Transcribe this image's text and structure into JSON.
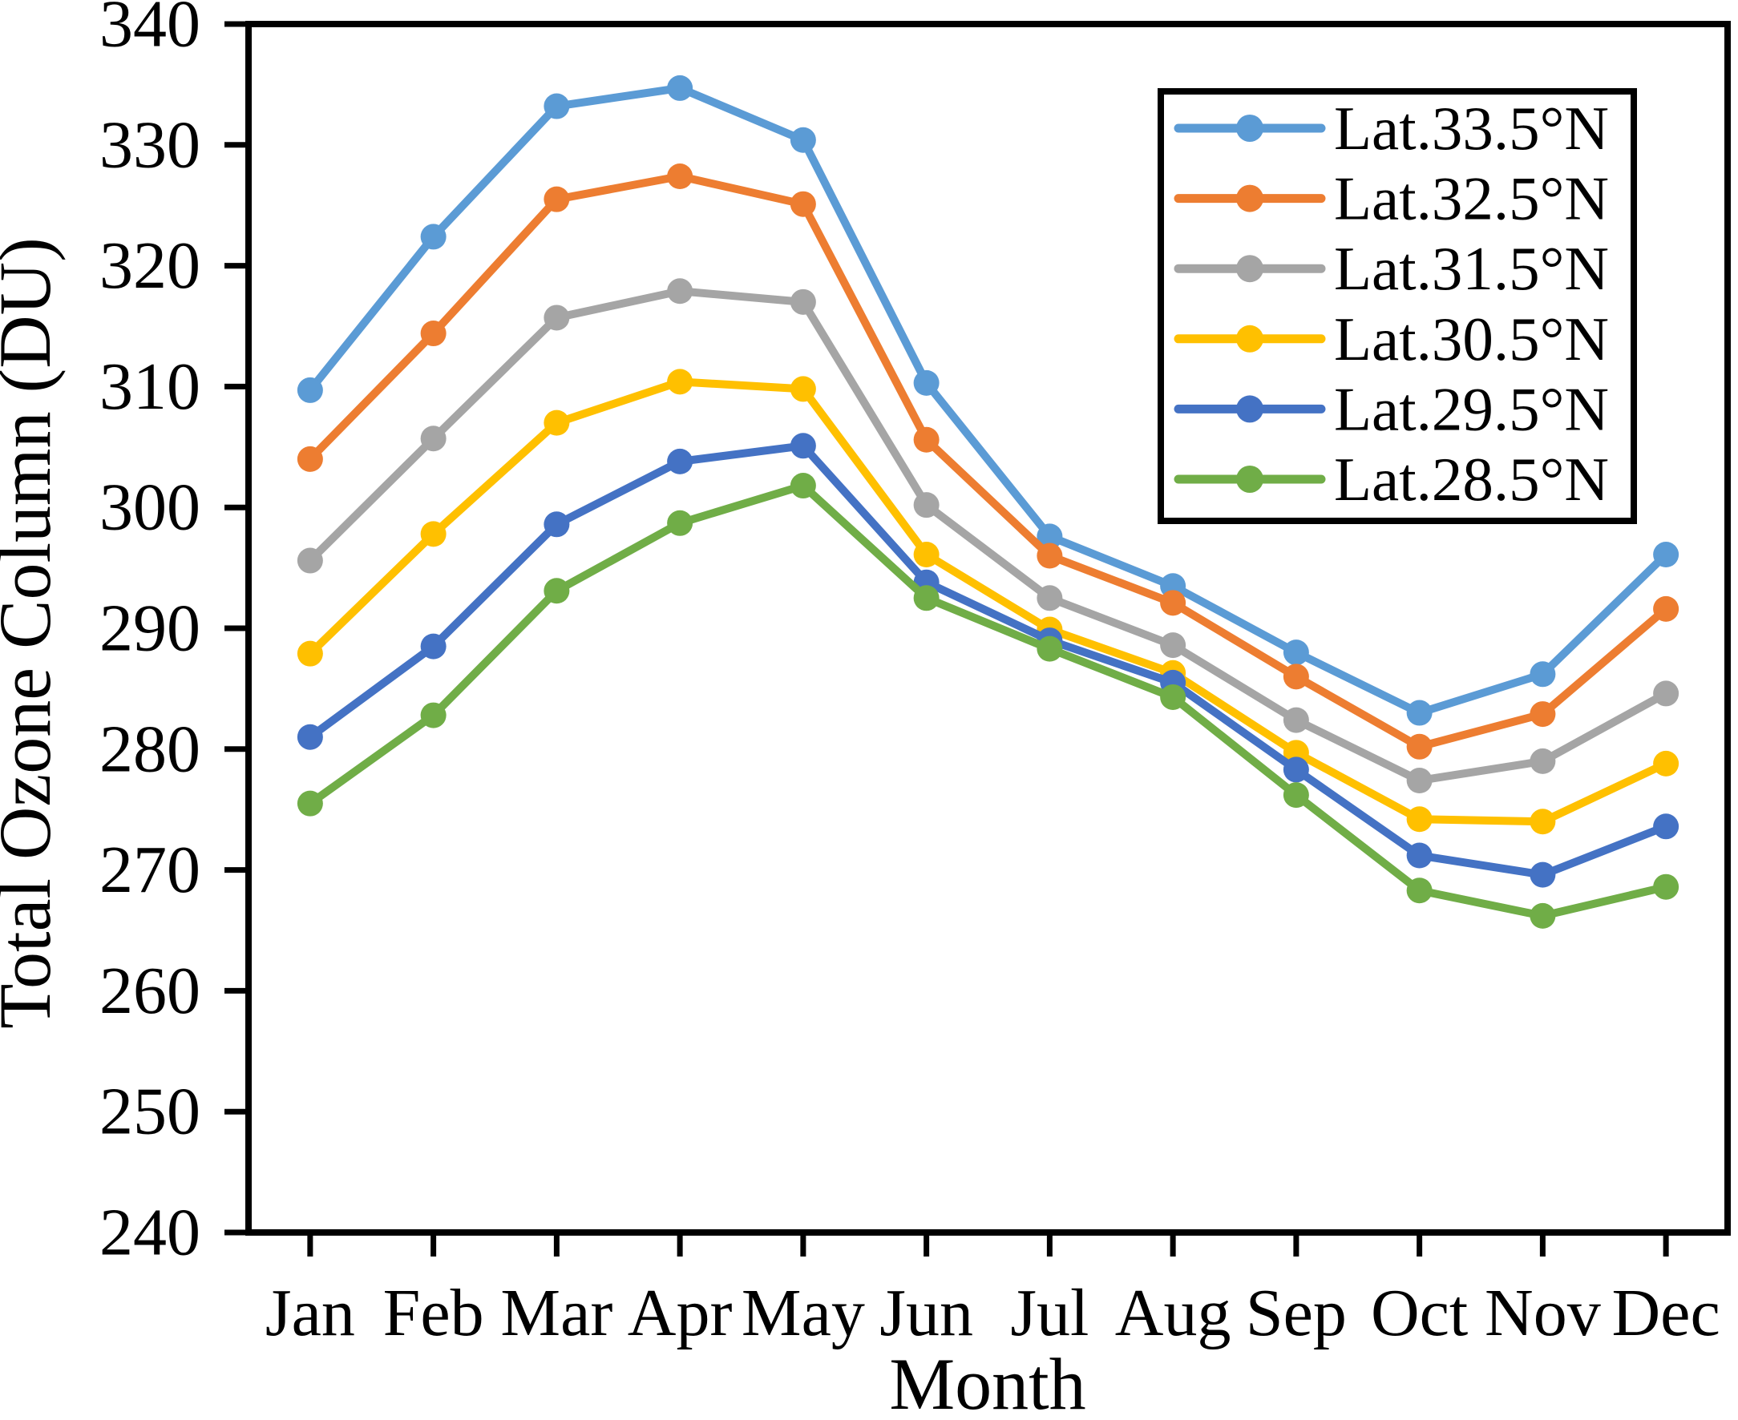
{
  "chart_data": {
    "type": "line",
    "title": "",
    "xlabel": "Month",
    "ylabel": "Total Ozone Column (DU)",
    "categories": [
      "Jan",
      "Feb",
      "Mar",
      "Apr",
      "May",
      "Jun",
      "Jul",
      "Aug",
      "Sep",
      "Oct",
      "Nov",
      "Dec"
    ],
    "ylim": [
      240,
      340
    ],
    "y_ticks": [
      240,
      250,
      260,
      270,
      280,
      290,
      300,
      310,
      320,
      330,
      340
    ],
    "grid": false,
    "legend_position": "top-right",
    "axis_color": "#000000",
    "series": [
      {
        "name": "Lat.33.5°N",
        "color": "#5B9BD5",
        "values": [
          309.7,
          322.4,
          333.2,
          334.7,
          330.4,
          310.3,
          297.6,
          293.5,
          288.0,
          283.0,
          286.2,
          296.1
        ]
      },
      {
        "name": "Lat.32.5°N",
        "color": "#ED7D31",
        "values": [
          304.0,
          314.4,
          325.5,
          327.4,
          325.1,
          305.6,
          296.0,
          292.1,
          286.0,
          280.2,
          282.9,
          291.6
        ]
      },
      {
        "name": "Lat.31.5°N",
        "color": "#A5A5A5",
        "values": [
          295.6,
          305.7,
          315.7,
          317.9,
          317.0,
          300.2,
          292.5,
          288.6,
          282.4,
          277.4,
          279.0,
          284.6
        ]
      },
      {
        "name": "Lat.30.5°N",
        "color": "#FFC000",
        "values": [
          287.9,
          297.8,
          307.0,
          310.4,
          309.8,
          296.1,
          289.9,
          286.3,
          279.7,
          274.2,
          274.0,
          278.8
        ]
      },
      {
        "name": "Lat.29.5°N",
        "color": "#4472C4",
        "values": [
          281.0,
          288.5,
          298.6,
          303.8,
          305.1,
          293.8,
          289.0,
          285.5,
          278.3,
          271.2,
          269.6,
          273.6
        ]
      },
      {
        "name": "Lat.28.5°N",
        "color": "#70AD47",
        "values": [
          275.5,
          282.8,
          293.1,
          298.7,
          301.8,
          292.5,
          288.3,
          284.3,
          276.2,
          268.3,
          266.2,
          268.6
        ]
      }
    ]
  }
}
